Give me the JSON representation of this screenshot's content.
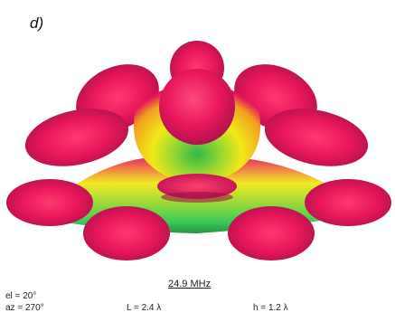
{
  "panel_label": "d)",
  "frequency": "24.9 MHz",
  "elevation": {
    "label": "el = ",
    "value": "20°"
  },
  "azimuth": {
    "label": "az = ",
    "value": "270°"
  },
  "length": "L = 2.4 λ",
  "height": "h = 1.2 λ",
  "colors": {
    "lobe_max": "#e8165a",
    "lobe_mid": "#f2e81a",
    "lobe_min": "#30c850",
    "lobe_edge": "#c81660"
  }
}
